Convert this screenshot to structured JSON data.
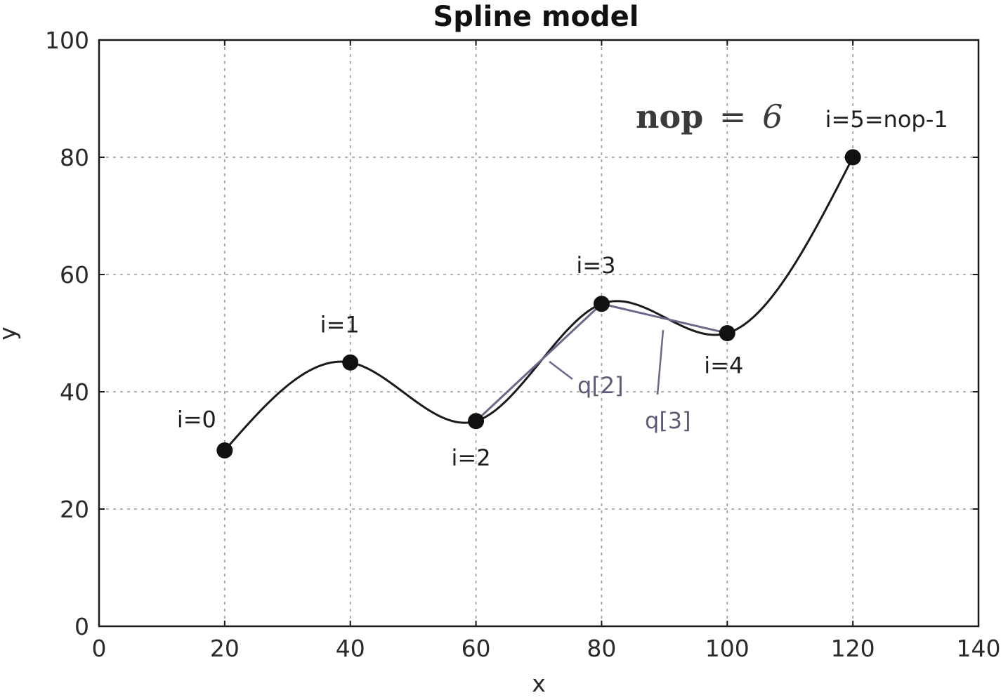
{
  "chart_data": {
    "type": "line",
    "title": "Spline model",
    "xlabel": "x",
    "ylabel": "y",
    "xlim": [
      0,
      140
    ],
    "ylim": [
      0,
      100
    ],
    "x_ticks": [
      0,
      20,
      40,
      60,
      80,
      100,
      120,
      140
    ],
    "y_ticks": [
      0,
      20,
      40,
      60,
      80,
      100
    ],
    "x_tick_labels": [
      "0",
      "20",
      "40",
      "60",
      "80",
      "100",
      "120",
      "140"
    ],
    "y_tick_labels": [
      "0",
      "20",
      "40",
      "60",
      "80",
      "100"
    ],
    "grid": true,
    "series": [
      {
        "kind": "spline-curve",
        "color": "#1a1a1a",
        "x": [
          20,
          40,
          60,
          80,
          100,
          120
        ],
        "y": [
          30,
          45,
          35,
          55,
          50,
          80
        ]
      },
      {
        "kind": "segment",
        "color": "#6b6788",
        "x": [
          60,
          80
        ],
        "y": [
          35,
          55
        ]
      },
      {
        "kind": "segment",
        "color": "#6b6788",
        "x": [
          80,
          100
        ],
        "y": [
          55,
          50
        ]
      }
    ],
    "points": [
      {
        "x": 20,
        "y": 30,
        "label": "i=0"
      },
      {
        "x": 40,
        "y": 45,
        "label": "i=1"
      },
      {
        "x": 60,
        "y": 35,
        "label": "i=2"
      },
      {
        "x": 80,
        "y": 55,
        "label": "i=3"
      },
      {
        "x": 100,
        "y": 50,
        "label": "i=4"
      },
      {
        "x": 120,
        "y": 80,
        "label": "i=5=nop-1"
      }
    ],
    "annotations": [
      {
        "text": "q[2]"
      },
      {
        "text": "q[3]"
      }
    ],
    "nop_label": {
      "name": "nop",
      "equals": "=",
      "value": "6"
    },
    "colors": {
      "curve": "#1a1a1a",
      "segments": "#6b6788",
      "annotation_text": "#5d5a78"
    }
  }
}
